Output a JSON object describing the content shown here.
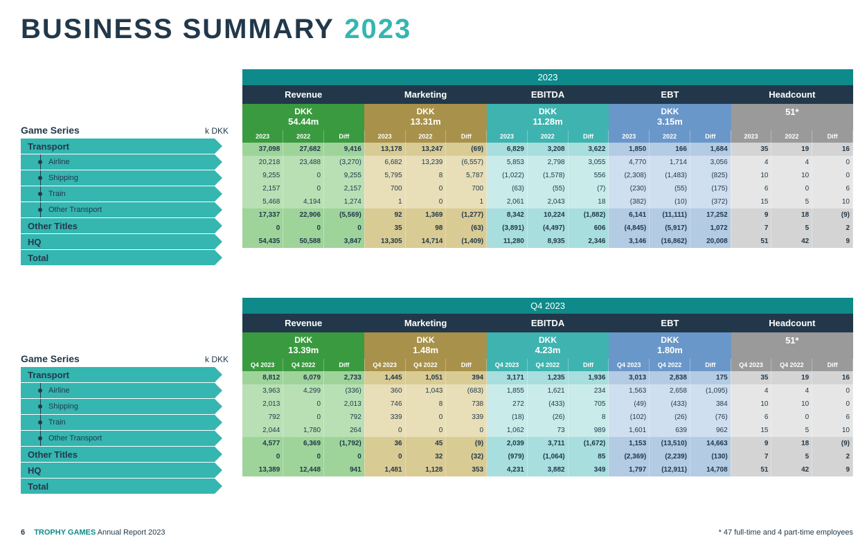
{
  "title": {
    "main": "BUSINESS SUMMARY",
    "year": "2023"
  },
  "colors": {
    "revenue_header": "#3a9a3f",
    "revenue_sub": "#3a9a3f",
    "revenue_a": "#9ed49a",
    "revenue_b": "#b8e0b4",
    "marketing_header": "#a8914a",
    "marketing_sub": "#a8914a",
    "marketing_a": "#d9cb94",
    "marketing_b": "#e8dfb8",
    "ebitda_header": "#3fb3b0",
    "ebitda_sub": "#3fb3b0",
    "ebitda_a": "#a8dedd",
    "ebitda_b": "#c9ebea",
    "ebt_header": "#6a97c9",
    "ebt_sub": "#6a97c9",
    "ebt_a": "#b3cbe3",
    "ebt_b": "#d0dff0",
    "headcount_header": "#9a9a9a",
    "headcount_sub": "#9a9a9a",
    "headcount_a": "#d4d4d4",
    "headcount_b": "#e6e6e6",
    "dark": "#22384a",
    "teal": "#35b6b0",
    "period": "#0e8a8a"
  },
  "sidebar": {
    "title": "Game Series",
    "unit": "k DKK",
    "rows": [
      {
        "label": "Transport",
        "bold": true
      },
      {
        "label": "Airline",
        "sub": true
      },
      {
        "label": "Shipping",
        "sub": true
      },
      {
        "label": "Train",
        "sub": true
      },
      {
        "label": "Other Transport",
        "sub": true
      },
      {
        "label": "Other Titles",
        "bold": true
      },
      {
        "label": "HQ",
        "bold": true
      },
      {
        "label": "Total",
        "bold": true
      }
    ]
  },
  "tables": [
    {
      "period": "2023",
      "col_labels": [
        "2023",
        "2022",
        "Diff"
      ],
      "metrics": [
        {
          "name": "Revenue",
          "value_top": "DKK",
          "value_bot": "54.44m",
          "key": "revenue"
        },
        {
          "name": "Marketing",
          "value_top": "DKK",
          "value_bot": "13.31m",
          "key": "marketing"
        },
        {
          "name": "EBITDA",
          "value_top": "DKK",
          "value_bot": "11.28m",
          "key": "ebitda"
        },
        {
          "name": "EBT",
          "value_top": "DKK",
          "value_bot": "3.15m",
          "key": "ebt"
        },
        {
          "name": "Headcount",
          "value_top": "",
          "value_bot": "51*",
          "key": "headcount"
        }
      ],
      "rows": [
        {
          "bold": true,
          "cells": [
            "37,098",
            "27,682",
            "9,416",
            "13,178",
            "13,247",
            "(69)",
            "6,829",
            "3,208",
            "3,622",
            "1,850",
            "166",
            "1,684",
            "35",
            "19",
            "16"
          ]
        },
        {
          "cells": [
            "20,218",
            "23,488",
            "(3,270)",
            "6,682",
            "13,239",
            "(6,557)",
            "5,853",
            "2,798",
            "3,055",
            "4,770",
            "1,714",
            "3,056",
            "4",
            "4",
            "0"
          ]
        },
        {
          "cells": [
            "9,255",
            "0",
            "9,255",
            "5,795",
            "8",
            "5,787",
            "(1,022)",
            "(1,578)",
            "556",
            "(2,308)",
            "(1,483)",
            "(825)",
            "10",
            "10",
            "0"
          ]
        },
        {
          "cells": [
            "2,157",
            "0",
            "2,157",
            "700",
            "0",
            "700",
            "(63)",
            "(55)",
            "(7)",
            "(230)",
            "(55)",
            "(175)",
            "6",
            "0",
            "6"
          ]
        },
        {
          "cells": [
            "5,468",
            "4,194",
            "1,274",
            "1",
            "0",
            "1",
            "2,061",
            "2,043",
            "18",
            "(382)",
            "(10)",
            "(372)",
            "15",
            "5",
            "10"
          ]
        },
        {
          "bold": true,
          "cells": [
            "17,337",
            "22,906",
            "(5,569)",
            "92",
            "1,369",
            "(1,277)",
            "8,342",
            "10,224",
            "(1,882)",
            "6,141",
            "(11,111)",
            "17,252",
            "9",
            "18",
            "(9)"
          ]
        },
        {
          "bold": true,
          "cells": [
            "0",
            "0",
            "0",
            "35",
            "98",
            "(63)",
            "(3,891)",
            "(4,497)",
            "606",
            "(4,845)",
            "(5,917)",
            "1,072",
            "7",
            "5",
            "2"
          ]
        },
        {
          "bold": true,
          "total": true,
          "cells": [
            "54,435",
            "50,588",
            "3,847",
            "13,305",
            "14,714",
            "(1,409)",
            "11,280",
            "8,935",
            "2,346",
            "3,146",
            "(16,862)",
            "20,008",
            "51",
            "42",
            "9"
          ]
        }
      ]
    },
    {
      "period": "Q4 2023",
      "col_labels": [
        "Q4 2023",
        "Q4 2022",
        "Diff"
      ],
      "metrics": [
        {
          "name": "Revenue",
          "value_top": "DKK",
          "value_bot": "13.39m",
          "key": "revenue"
        },
        {
          "name": "Marketing",
          "value_top": "DKK",
          "value_bot": "1.48m",
          "key": "marketing"
        },
        {
          "name": "EBITDA",
          "value_top": "DKK",
          "value_bot": "4.23m",
          "key": "ebitda"
        },
        {
          "name": "EBT",
          "value_top": "DKK",
          "value_bot": "1.80m",
          "key": "ebt"
        },
        {
          "name": "Headcount",
          "value_top": "",
          "value_bot": "51*",
          "key": "headcount"
        }
      ],
      "rows": [
        {
          "bold": true,
          "cells": [
            "8,812",
            "6,079",
            "2,733",
            "1,445",
            "1,051",
            "394",
            "3,171",
            "1,235",
            "1,936",
            "3,013",
            "2,838",
            "175",
            "35",
            "19",
            "16"
          ]
        },
        {
          "cells": [
            "3,963",
            "4,299",
            "(336)",
            "360",
            "1,043",
            "(683)",
            "1,855",
            "1,621",
            "234",
            "1,563",
            "2,658",
            "(1,095)",
            "4",
            "4",
            "0"
          ]
        },
        {
          "cells": [
            "2,013",
            "0",
            "2,013",
            "746",
            "8",
            "738",
            "272",
            "(433)",
            "705",
            "(49)",
            "(433)",
            "384",
            "10",
            "10",
            "0"
          ]
        },
        {
          "cells": [
            "792",
            "0",
            "792",
            "339",
            "0",
            "339",
            "(18)",
            "(26)",
            "8",
            "(102)",
            "(26)",
            "(76)",
            "6",
            "0",
            "6"
          ]
        },
        {
          "cells": [
            "2,044",
            "1,780",
            "264",
            "0",
            "0",
            "0",
            "1,062",
            "73",
            "989",
            "1,601",
            "639",
            "962",
            "15",
            "5",
            "10"
          ]
        },
        {
          "bold": true,
          "cells": [
            "4,577",
            "6,369",
            "(1,792)",
            "36",
            "45",
            "(9)",
            "2,039",
            "3,711",
            "(1,672)",
            "1,153",
            "(13,510)",
            "14,663",
            "9",
            "18",
            "(9)"
          ]
        },
        {
          "bold": true,
          "cells": [
            "0",
            "0",
            "0",
            "0",
            "32",
            "(32)",
            "(979)",
            "(1,064)",
            "85",
            "(2,369)",
            "(2,239)",
            "(130)",
            "7",
            "5",
            "2"
          ]
        },
        {
          "bold": true,
          "total": true,
          "cells": [
            "13,389",
            "12,448",
            "941",
            "1,481",
            "1,128",
            "353",
            "4,231",
            "3,882",
            "349",
            "1,797",
            "(12,911)",
            "14,708",
            "51",
            "42",
            "9"
          ]
        }
      ]
    }
  ],
  "footer": {
    "page": "6",
    "brand": "TROPHY GAMES",
    "doc": "Annual Report 2023",
    "note": "* 47 full-time and 4 part-time employees"
  }
}
